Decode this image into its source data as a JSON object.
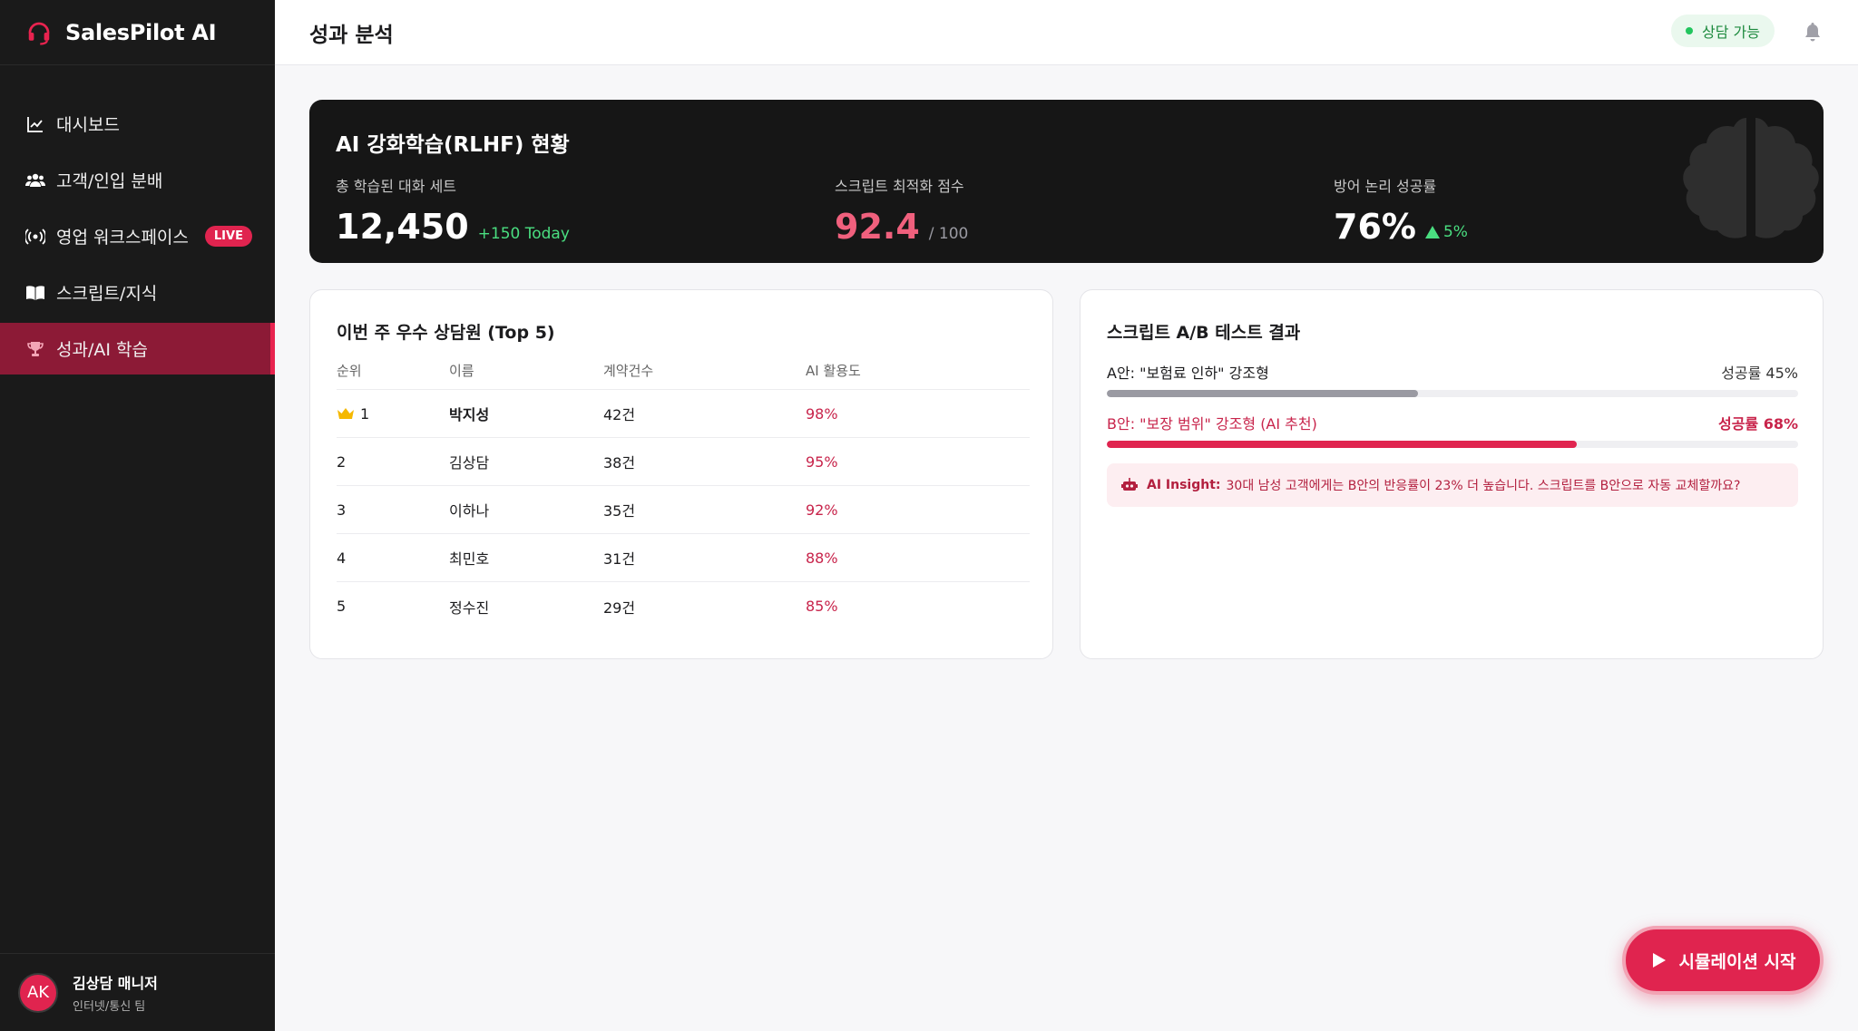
{
  "brand": {
    "name": "SalesPilot AI"
  },
  "sidebar": {
    "items": [
      {
        "label": "대시보드",
        "icon": "chart-line-icon"
      },
      {
        "label": "고객/인입 분배",
        "icon": "users-icon"
      },
      {
        "label": "영업 워크스페이스",
        "icon": "broadcast-icon",
        "badge": "LIVE"
      },
      {
        "label": "스크립트/지식",
        "icon": "book-open-icon"
      },
      {
        "label": "성과/AI 학습",
        "icon": "trophy-icon",
        "active": true
      }
    ]
  },
  "user": {
    "initials": "AK",
    "name": "김상담 매니저",
    "team": "인터넷/통신 팀"
  },
  "header": {
    "title": "성과 분석",
    "status": "상담 가능"
  },
  "hero": {
    "title": "AI 강화학습(RLHF) 현황",
    "metrics": [
      {
        "label": "총 학습된 대화 세트",
        "value": "12,450",
        "sub": "+150 Today"
      },
      {
        "label": "스크립트 최적화 점수",
        "value": "92.4",
        "sub": "/ 100"
      },
      {
        "label": "방어 논리 성공률",
        "value": "76%",
        "sub": "5%"
      }
    ]
  },
  "top_agents": {
    "title": "이번 주 우수 상담원 (Top 5)",
    "columns": [
      "순위",
      "이름",
      "계약건수",
      "AI 활용도"
    ],
    "rows": [
      {
        "rank": "1",
        "name": "박지성",
        "contracts": "42건",
        "ai_usage": "98%"
      },
      {
        "rank": "2",
        "name": "김상담",
        "contracts": "38건",
        "ai_usage": "95%"
      },
      {
        "rank": "3",
        "name": "이하나",
        "contracts": "35건",
        "ai_usage": "92%"
      },
      {
        "rank": "4",
        "name": "최민호",
        "contracts": "31건",
        "ai_usage": "88%"
      },
      {
        "rank": "5",
        "name": "정수진",
        "contracts": "29건",
        "ai_usage": "85%"
      }
    ]
  },
  "ab_test": {
    "title": "스크립트 A/B 테스트 결과",
    "variants": [
      {
        "label": "A안: \"보험료 인하\" 강조형",
        "result": "성공률 45%",
        "rate": 0.45,
        "color": "#9a9aa2"
      },
      {
        "label": "B안: \"보장 범위\" 강조형 (AI 추천)",
        "result": "성공률 68%",
        "rate": 0.68,
        "color": "#e0244f"
      }
    ],
    "insight_title": "AI Insight:",
    "insight_text": "30대 남성 고객에게는 B안의 반응률이 23% 더 높습니다. 스크립트를 B안으로 자동 교체할까요?"
  },
  "actions": {
    "simulation": "시뮬레이션 시작"
  },
  "colors": {
    "accent": "#e0244f",
    "positive": "#22c55e",
    "sidebar_bg": "#1a1a1a"
  }
}
